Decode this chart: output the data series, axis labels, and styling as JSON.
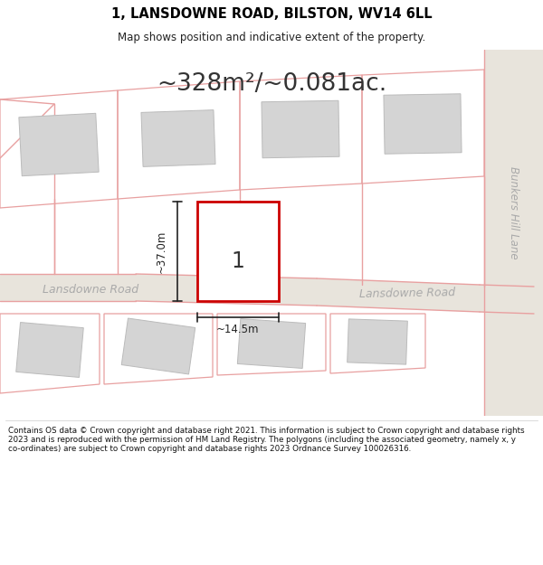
{
  "title": "1, LANSDOWNE ROAD, BILSTON, WV14 6LL",
  "subtitle": "Map shows position and indicative extent of the property.",
  "area_text": "~328m²/~0.081ac.",
  "label_37m": "~37.0m",
  "label_145m": "~14.5m",
  "label_num": "1",
  "road_label_left": "Lansdowne Road",
  "road_label_right": "Lansdowne Road",
  "side_road_label": "Bunkers Hill Lane",
  "footer": "Contains OS data © Crown copyright and database right 2021. This information is subject to Crown copyright and database rights 2023 and is reproduced with the permission of HM Land Registry. The polygons (including the associated geometry, namely x, y co-ordinates) are subject to Crown copyright and database rights 2023 Ordnance Survey 100026316.",
  "bg_color": "#ffffff",
  "map_bg": "#f2f2f2",
  "plot_fill": "#ffffff",
  "plot_edge": "#cc0000",
  "building_fill": "#d4d4d4",
  "street_line_color": "#e8a0a0",
  "dim_line_color": "#222222",
  "road_fill": "#e8e4dc"
}
